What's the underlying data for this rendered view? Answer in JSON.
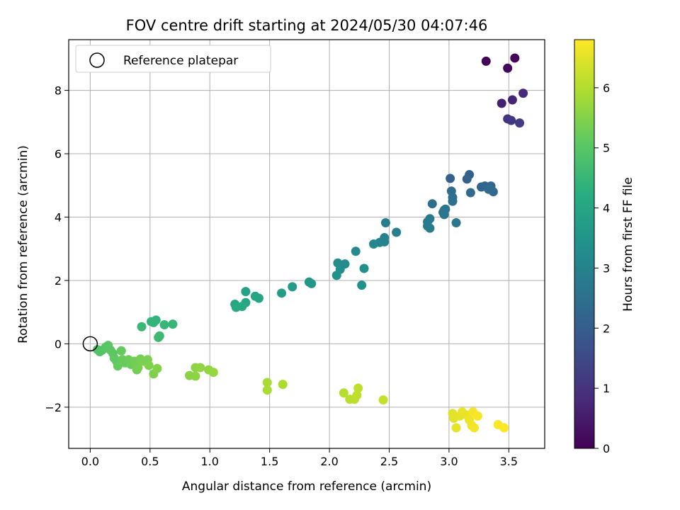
{
  "chart_data": {
    "type": "scatter",
    "title": "FOV centre drift starting at 2024/05/30 04:07:46",
    "xlabel": "Angular distance from reference (arcmin)",
    "ylabel": "Rotation from reference (arcmin)",
    "xlim": [
      -0.18,
      3.8
    ],
    "ylim": [
      -3.3,
      9.6
    ],
    "x_ticks": [
      "0.0",
      "0.5",
      "1.0",
      "1.5",
      "2.0",
      "2.5",
      "3.0",
      "3.5"
    ],
    "y_ticks": [
      "−2",
      "0",
      "2",
      "4",
      "6",
      "8"
    ],
    "grid": true,
    "legend": {
      "placement": "top-left",
      "entries": [
        "Reference platepar"
      ]
    },
    "reference_point": {
      "x": 0.0,
      "y": 0.0
    },
    "colorbar": {
      "label": "Hours from first FF file",
      "range": [
        0,
        6.8
      ],
      "ticks": [
        "0",
        "1",
        "2",
        "3",
        "4",
        "5",
        "6"
      ],
      "colormap": "viridis"
    },
    "points": [
      {
        "x": 3.31,
        "y": 8.92,
        "h": 0.05
      },
      {
        "x": 3.55,
        "y": 9.02,
        "h": 0.1
      },
      {
        "x": 3.49,
        "y": 8.7,
        "h": 0.15
      },
      {
        "x": 3.44,
        "y": 7.59,
        "h": 0.6
      },
      {
        "x": 3.53,
        "y": 7.7,
        "h": 0.7
      },
      {
        "x": 3.62,
        "y": 7.91,
        "h": 0.8
      },
      {
        "x": 3.49,
        "y": 7.1,
        "h": 1.0
      },
      {
        "x": 3.52,
        "y": 7.05,
        "h": 1.1
      },
      {
        "x": 3.59,
        "y": 6.97,
        "h": 1.2
      },
      {
        "x": 3.01,
        "y": 5.22,
        "h": 2.1
      },
      {
        "x": 3.15,
        "y": 5.2,
        "h": 2.1
      },
      {
        "x": 3.17,
        "y": 5.34,
        "h": 2.15
      },
      {
        "x": 3.27,
        "y": 4.95,
        "h": 2.2
      },
      {
        "x": 3.3,
        "y": 4.98,
        "h": 2.25
      },
      {
        "x": 3.35,
        "y": 4.98,
        "h": 2.3
      },
      {
        "x": 3.37,
        "y": 4.8,
        "h": 2.3
      },
      {
        "x": 3.33,
        "y": 4.88,
        "h": 2.35
      },
      {
        "x": 3.18,
        "y": 4.77,
        "h": 2.35
      },
      {
        "x": 3.02,
        "y": 4.82,
        "h": 2.4
      },
      {
        "x": 3.03,
        "y": 4.62,
        "h": 2.45
      },
      {
        "x": 3.03,
        "y": 4.5,
        "h": 2.5
      },
      {
        "x": 2.96,
        "y": 4.22,
        "h": 2.6
      },
      {
        "x": 2.97,
        "y": 4.25,
        "h": 2.6
      },
      {
        "x": 2.95,
        "y": 4.15,
        "h": 2.65
      },
      {
        "x": 2.96,
        "y": 4.08,
        "h": 2.65
      },
      {
        "x": 3.06,
        "y": 3.82,
        "h": 2.7
      },
      {
        "x": 2.86,
        "y": 4.42,
        "h": 2.5
      },
      {
        "x": 2.84,
        "y": 3.95,
        "h": 2.75
      },
      {
        "x": 2.82,
        "y": 3.85,
        "h": 2.8
      },
      {
        "x": 2.82,
        "y": 3.72,
        "h": 2.8
      },
      {
        "x": 2.84,
        "y": 3.65,
        "h": 2.85
      },
      {
        "x": 2.56,
        "y": 3.52,
        "h": 2.9
      },
      {
        "x": 2.47,
        "y": 3.82,
        "h": 2.9
      },
      {
        "x": 2.46,
        "y": 3.35,
        "h": 3.0
      },
      {
        "x": 2.46,
        "y": 3.22,
        "h": 3.0
      },
      {
        "x": 2.42,
        "y": 3.2,
        "h": 3.05
      },
      {
        "x": 2.37,
        "y": 3.15,
        "h": 3.1
      },
      {
        "x": 2.22,
        "y": 2.92,
        "h": 3.2
      },
      {
        "x": 2.07,
        "y": 2.55,
        "h": 3.3
      },
      {
        "x": 2.13,
        "y": 2.52,
        "h": 3.3
      },
      {
        "x": 2.09,
        "y": 2.35,
        "h": 3.35
      },
      {
        "x": 2.29,
        "y": 2.38,
        "h": 3.35
      },
      {
        "x": 2.06,
        "y": 2.16,
        "h": 3.4
      },
      {
        "x": 2.27,
        "y": 1.85,
        "h": 3.45
      },
      {
        "x": 1.83,
        "y": 1.95,
        "h": 3.6
      },
      {
        "x": 1.85,
        "y": 1.9,
        "h": 3.6
      },
      {
        "x": 1.69,
        "y": 1.8,
        "h": 3.7
      },
      {
        "x": 1.6,
        "y": 1.6,
        "h": 3.75
      },
      {
        "x": 1.3,
        "y": 1.65,
        "h": 3.9
      },
      {
        "x": 1.38,
        "y": 1.5,
        "h": 3.95
      },
      {
        "x": 1.41,
        "y": 1.44,
        "h": 4.0
      },
      {
        "x": 1.3,
        "y": 1.3,
        "h": 4.0
      },
      {
        "x": 1.21,
        "y": 1.25,
        "h": 4.05
      },
      {
        "x": 1.22,
        "y": 1.15,
        "h": 4.1
      },
      {
        "x": 1.27,
        "y": 1.18,
        "h": 4.1
      },
      {
        "x": 0.55,
        "y": 0.75,
        "h": 4.4
      },
      {
        "x": 0.51,
        "y": 0.7,
        "h": 4.4
      },
      {
        "x": 0.53,
        "y": 0.67,
        "h": 4.45
      },
      {
        "x": 0.62,
        "y": 0.6,
        "h": 4.5
      },
      {
        "x": 0.69,
        "y": 0.62,
        "h": 4.5
      },
      {
        "x": 0.43,
        "y": 0.54,
        "h": 4.55
      },
      {
        "x": 0.58,
        "y": 0.25,
        "h": 4.6
      },
      {
        "x": 0.57,
        "y": 0.2,
        "h": 4.6
      },
      {
        "x": 0.06,
        "y": -0.18,
        "h": 4.9
      },
      {
        "x": 0.08,
        "y": -0.25,
        "h": 4.95
      },
      {
        "x": 0.1,
        "y": -0.2,
        "h": 4.95
      },
      {
        "x": 0.13,
        "y": -0.1,
        "h": 5.0
      },
      {
        "x": 0.15,
        "y": -0.05,
        "h": 5.0
      },
      {
        "x": 0.17,
        "y": -0.2,
        "h": 5.05
      },
      {
        "x": 0.19,
        "y": -0.3,
        "h": 5.05
      },
      {
        "x": 0.2,
        "y": -0.45,
        "h": 5.1
      },
      {
        "x": 0.22,
        "y": -0.55,
        "h": 5.1
      },
      {
        "x": 0.23,
        "y": -0.7,
        "h": 5.15
      },
      {
        "x": 0.26,
        "y": -0.22,
        "h": 5.15
      },
      {
        "x": 0.27,
        "y": -0.5,
        "h": 5.2
      },
      {
        "x": 0.29,
        "y": -0.6,
        "h": 5.2
      },
      {
        "x": 0.32,
        "y": -0.5,
        "h": 5.25
      },
      {
        "x": 0.34,
        "y": -0.65,
        "h": 5.25
      },
      {
        "x": 0.37,
        "y": -0.55,
        "h": 5.3
      },
      {
        "x": 0.39,
        "y": -0.82,
        "h": 5.3
      },
      {
        "x": 0.4,
        "y": -0.75,
        "h": 5.35
      },
      {
        "x": 0.42,
        "y": -0.48,
        "h": 5.35
      },
      {
        "x": 0.45,
        "y": -0.55,
        "h": 5.4
      },
      {
        "x": 0.48,
        "y": -0.5,
        "h": 5.4
      },
      {
        "x": 0.49,
        "y": -0.68,
        "h": 5.45
      },
      {
        "x": 0.53,
        "y": -0.95,
        "h": 5.45
      },
      {
        "x": 0.56,
        "y": -0.78,
        "h": 5.5
      },
      {
        "x": 0.83,
        "y": -1.0,
        "h": 5.55
      },
      {
        "x": 0.88,
        "y": -0.75,
        "h": 5.6
      },
      {
        "x": 0.88,
        "y": -1.02,
        "h": 5.6
      },
      {
        "x": 0.92,
        "y": -0.75,
        "h": 5.65
      },
      {
        "x": 0.99,
        "y": -0.82,
        "h": 5.65
      },
      {
        "x": 1.03,
        "y": -0.9,
        "h": 5.7
      },
      {
        "x": 1.48,
        "y": -1.22,
        "h": 5.9
      },
      {
        "x": 1.48,
        "y": -1.46,
        "h": 5.9
      },
      {
        "x": 1.61,
        "y": -1.28,
        "h": 5.95
      },
      {
        "x": 2.12,
        "y": -1.55,
        "h": 6.05
      },
      {
        "x": 2.17,
        "y": -1.75,
        "h": 6.1
      },
      {
        "x": 2.21,
        "y": -1.75,
        "h": 6.1
      },
      {
        "x": 2.23,
        "y": -1.62,
        "h": 6.15
      },
      {
        "x": 2.24,
        "y": -1.4,
        "h": 6.15
      },
      {
        "x": 2.45,
        "y": -1.77,
        "h": 6.2
      },
      {
        "x": 3.03,
        "y": -2.2,
        "h": 6.5
      },
      {
        "x": 3.04,
        "y": -2.35,
        "h": 6.5
      },
      {
        "x": 3.06,
        "y": -2.65,
        "h": 6.55
      },
      {
        "x": 3.09,
        "y": -2.28,
        "h": 6.55
      },
      {
        "x": 3.11,
        "y": -2.15,
        "h": 6.6
      },
      {
        "x": 3.15,
        "y": -2.25,
        "h": 6.6
      },
      {
        "x": 3.17,
        "y": -2.4,
        "h": 6.65
      },
      {
        "x": 3.19,
        "y": -2.58,
        "h": 6.65
      },
      {
        "x": 3.2,
        "y": -2.15,
        "h": 6.7
      },
      {
        "x": 3.21,
        "y": -2.65,
        "h": 6.7
      },
      {
        "x": 3.24,
        "y": -2.28,
        "h": 6.75
      },
      {
        "x": 3.41,
        "y": -2.55,
        "h": 6.78
      },
      {
        "x": 3.46,
        "y": -2.65,
        "h": 6.8
      }
    ]
  }
}
